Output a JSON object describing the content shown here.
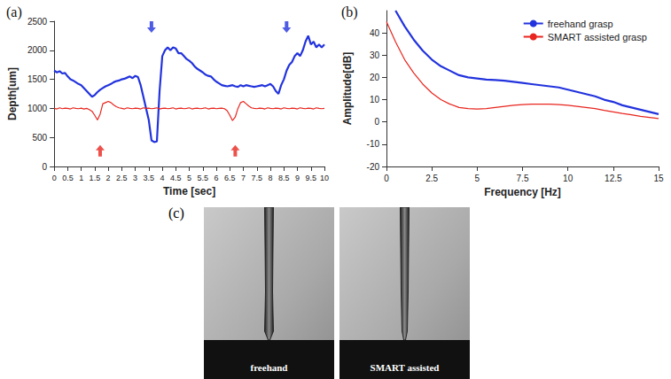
{
  "chart_data": [
    {
      "type": "line",
      "title": "(a)",
      "x_label": "Time [sec]",
      "y_label": "Depth[um]",
      "xlim": [
        0,
        10
      ],
      "xticks": [
        0,
        0.5,
        1,
        1.5,
        2,
        2.5,
        3,
        3.5,
        4,
        4.5,
        5,
        5.5,
        6,
        6.5,
        7,
        7.5,
        8,
        8.5,
        9,
        9.5,
        10
      ],
      "ylim": [
        0,
        2500
      ],
      "yticks": [
        0,
        500,
        1000,
        1500,
        2000,
        2500
      ],
      "grid": false,
      "x": [
        0,
        0.1,
        0.2,
        0.3,
        0.4,
        0.5,
        0.6,
        0.7,
        0.8,
        0.9,
        1,
        1.1,
        1.2,
        1.3,
        1.4,
        1.5,
        1.6,
        1.7,
        1.8,
        1.9,
        2,
        2.1,
        2.2,
        2.3,
        2.4,
        2.5,
        2.6,
        2.7,
        2.8,
        2.9,
        3,
        3.1,
        3.2,
        3.3,
        3.4,
        3.5,
        3.6,
        3.7,
        3.8,
        3.9,
        4,
        4.1,
        4.2,
        4.3,
        4.4,
        4.5,
        4.6,
        4.7,
        4.8,
        4.9,
        5,
        5.1,
        5.2,
        5.3,
        5.4,
        5.5,
        5.6,
        5.7,
        5.8,
        5.9,
        6,
        6.1,
        6.2,
        6.3,
        6.4,
        6.5,
        6.6,
        6.7,
        6.8,
        6.9,
        7,
        7.1,
        7.2,
        7.3,
        7.4,
        7.5,
        7.6,
        7.7,
        7.8,
        7.9,
        8,
        8.1,
        8.2,
        8.3,
        8.4,
        8.5,
        8.6,
        8.7,
        8.8,
        8.9,
        9,
        9.1,
        9.2,
        9.3,
        9.4,
        9.5,
        9.6,
        9.7,
        9.8,
        9.9,
        10
      ],
      "series": [
        {
          "color": "#2233dd",
          "values": [
            1650,
            1620,
            1640,
            1600,
            1610,
            1550,
            1500,
            1480,
            1450,
            1420,
            1400,
            1350,
            1300,
            1250,
            1200,
            1230,
            1280,
            1320,
            1350,
            1380,
            1400,
            1420,
            1450,
            1470,
            1480,
            1500,
            1510,
            1530,
            1550,
            1520,
            1560,
            1540,
            1400,
            1200,
            1000,
            800,
            450,
            420,
            430,
            1300,
            1900,
            2000,
            2050,
            2000,
            2050,
            2030,
            1950,
            1950,
            1900,
            1850,
            1820,
            1780,
            1720,
            1680,
            1650,
            1620,
            1580,
            1560,
            1550,
            1500,
            1460,
            1430,
            1400,
            1390,
            1380,
            1390,
            1400,
            1380,
            1370,
            1400,
            1380,
            1400,
            1390,
            1380,
            1370,
            1380,
            1390,
            1400,
            1380,
            1400,
            1420,
            1380,
            1300,
            1250,
            1400,
            1500,
            1650,
            1750,
            1800,
            1900,
            1950,
            1900,
            2000,
            2150,
            2250,
            2100,
            2150,
            2050,
            2100,
            2050,
            2100
          ]
        },
        {
          "color": "#e8251e",
          "values": [
            1000,
            990,
            1010,
            995,
            1005,
            1000,
            990,
            1010,
            1000,
            995,
            1005,
            990,
            1000,
            980,
            950,
            880,
            800,
            900,
            1080,
            1100,
            1120,
            1100,
            1060,
            1030,
            1010,
            1000,
            990,
            1010,
            1000,
            995,
            1005,
            1000,
            990,
            1010,
            1000,
            1005,
            995,
            1000,
            1010,
            990,
            1000,
            1005,
            995,
            1000,
            1010,
            990,
            1000,
            1005,
            995,
            1000,
            1010,
            990,
            1000,
            1005,
            995,
            1000,
            1010,
            990,
            1000,
            1005,
            995,
            1000,
            1005,
            995,
            960,
            880,
            790,
            850,
            1000,
            1100,
            1120,
            1080,
            1040,
            1010,
            1000,
            995,
            1005,
            1000,
            990,
            1010,
            1000,
            995,
            1005,
            1000,
            990,
            1010,
            1000,
            995,
            1005,
            1000,
            990,
            1010,
            1000,
            995,
            1005,
            1000,
            990,
            1010,
            1000,
            995,
            1000
          ]
        }
      ],
      "arrows": [
        {
          "x": 3.6,
          "y": 2400,
          "direction": "down",
          "color": "#2233dd"
        },
        {
          "x": 8.6,
          "y": 2400,
          "direction": "down",
          "color": "#2233dd"
        },
        {
          "x": 1.7,
          "y": 270,
          "direction": "up",
          "color": "#e8251e"
        },
        {
          "x": 6.7,
          "y": 270,
          "direction": "up",
          "color": "#e8251e"
        }
      ]
    },
    {
      "type": "line",
      "title": "(b)",
      "x_label": "Frequency [Hz]",
      "y_label": "Amplitude[dB]",
      "xlim": [
        0,
        15
      ],
      "xticks": [
        0,
        2.5,
        5,
        7.5,
        10,
        12.5,
        15
      ],
      "ylim": [
        -20,
        50
      ],
      "yticks": [
        -20,
        -10,
        0,
        10,
        20,
        30,
        40
      ],
      "grid": false,
      "legend": "upper right",
      "x": [
        0,
        0.5,
        1,
        1.5,
        2,
        2.5,
        3,
        3.5,
        4,
        4.5,
        5,
        5.5,
        6,
        6.5,
        7,
        7.5,
        8,
        8.5,
        9,
        9.5,
        10,
        10.5,
        11,
        11.5,
        12,
        12.5,
        13,
        13.5,
        14,
        14.5,
        15
      ],
      "series": [
        {
          "name": "freehand grasp",
          "color": "#2233dd",
          "values": [
            null,
            50,
            43,
            37,
            32,
            28,
            25,
            23,
            21,
            20,
            19.5,
            19,
            18.8,
            18.5,
            18,
            17.5,
            17,
            16.5,
            16,
            15.5,
            14.5,
            13.5,
            12.5,
            11.5,
            10,
            9,
            7.5,
            6.5,
            5.5,
            4.5,
            3.5
          ]
        },
        {
          "name": "SMART assisted grasp",
          "color": "#e8251e",
          "values": [
            45,
            36,
            28,
            22,
            17,
            13,
            10,
            8,
            6.5,
            6,
            5.8,
            6,
            6.5,
            7,
            7.5,
            7.8,
            8,
            8,
            8,
            7.8,
            7.5,
            7,
            6.5,
            6,
            5.2,
            4.5,
            3.8,
            3.2,
            2.5,
            2,
            1.5
          ]
        }
      ]
    }
  ],
  "images": {
    "title": "(c)",
    "captions": [
      "freehand",
      "SMART assisted"
    ]
  }
}
